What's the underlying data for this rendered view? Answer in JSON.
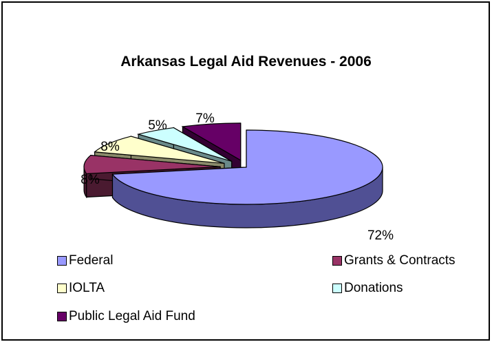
{
  "chart_data": {
    "type": "pie",
    "title": "Arkansas Legal Aid Revenues - 2006",
    "slices": [
      {
        "label": "Federal",
        "value": 72,
        "display": "72%",
        "color": "#9999ff",
        "side": "#505094"
      },
      {
        "label": "Grants & Contracts",
        "value": 8,
        "display": "8%",
        "color": "#993366",
        "side": "#4a1a30"
      },
      {
        "label": "IOLTA",
        "value": 8,
        "display": "8%",
        "color": "#ffffcc",
        "side": "#8a8a6a"
      },
      {
        "label": "Donations",
        "value": 5,
        "display": "5%",
        "color": "#ccffff",
        "side": "#6a8a8a"
      },
      {
        "label": "Public Legal Aid Fund",
        "value": 7,
        "display": "7%",
        "color": "#660066",
        "side": "#330033"
      }
    ],
    "style": "3d-exploded",
    "legend_position": "bottom"
  }
}
